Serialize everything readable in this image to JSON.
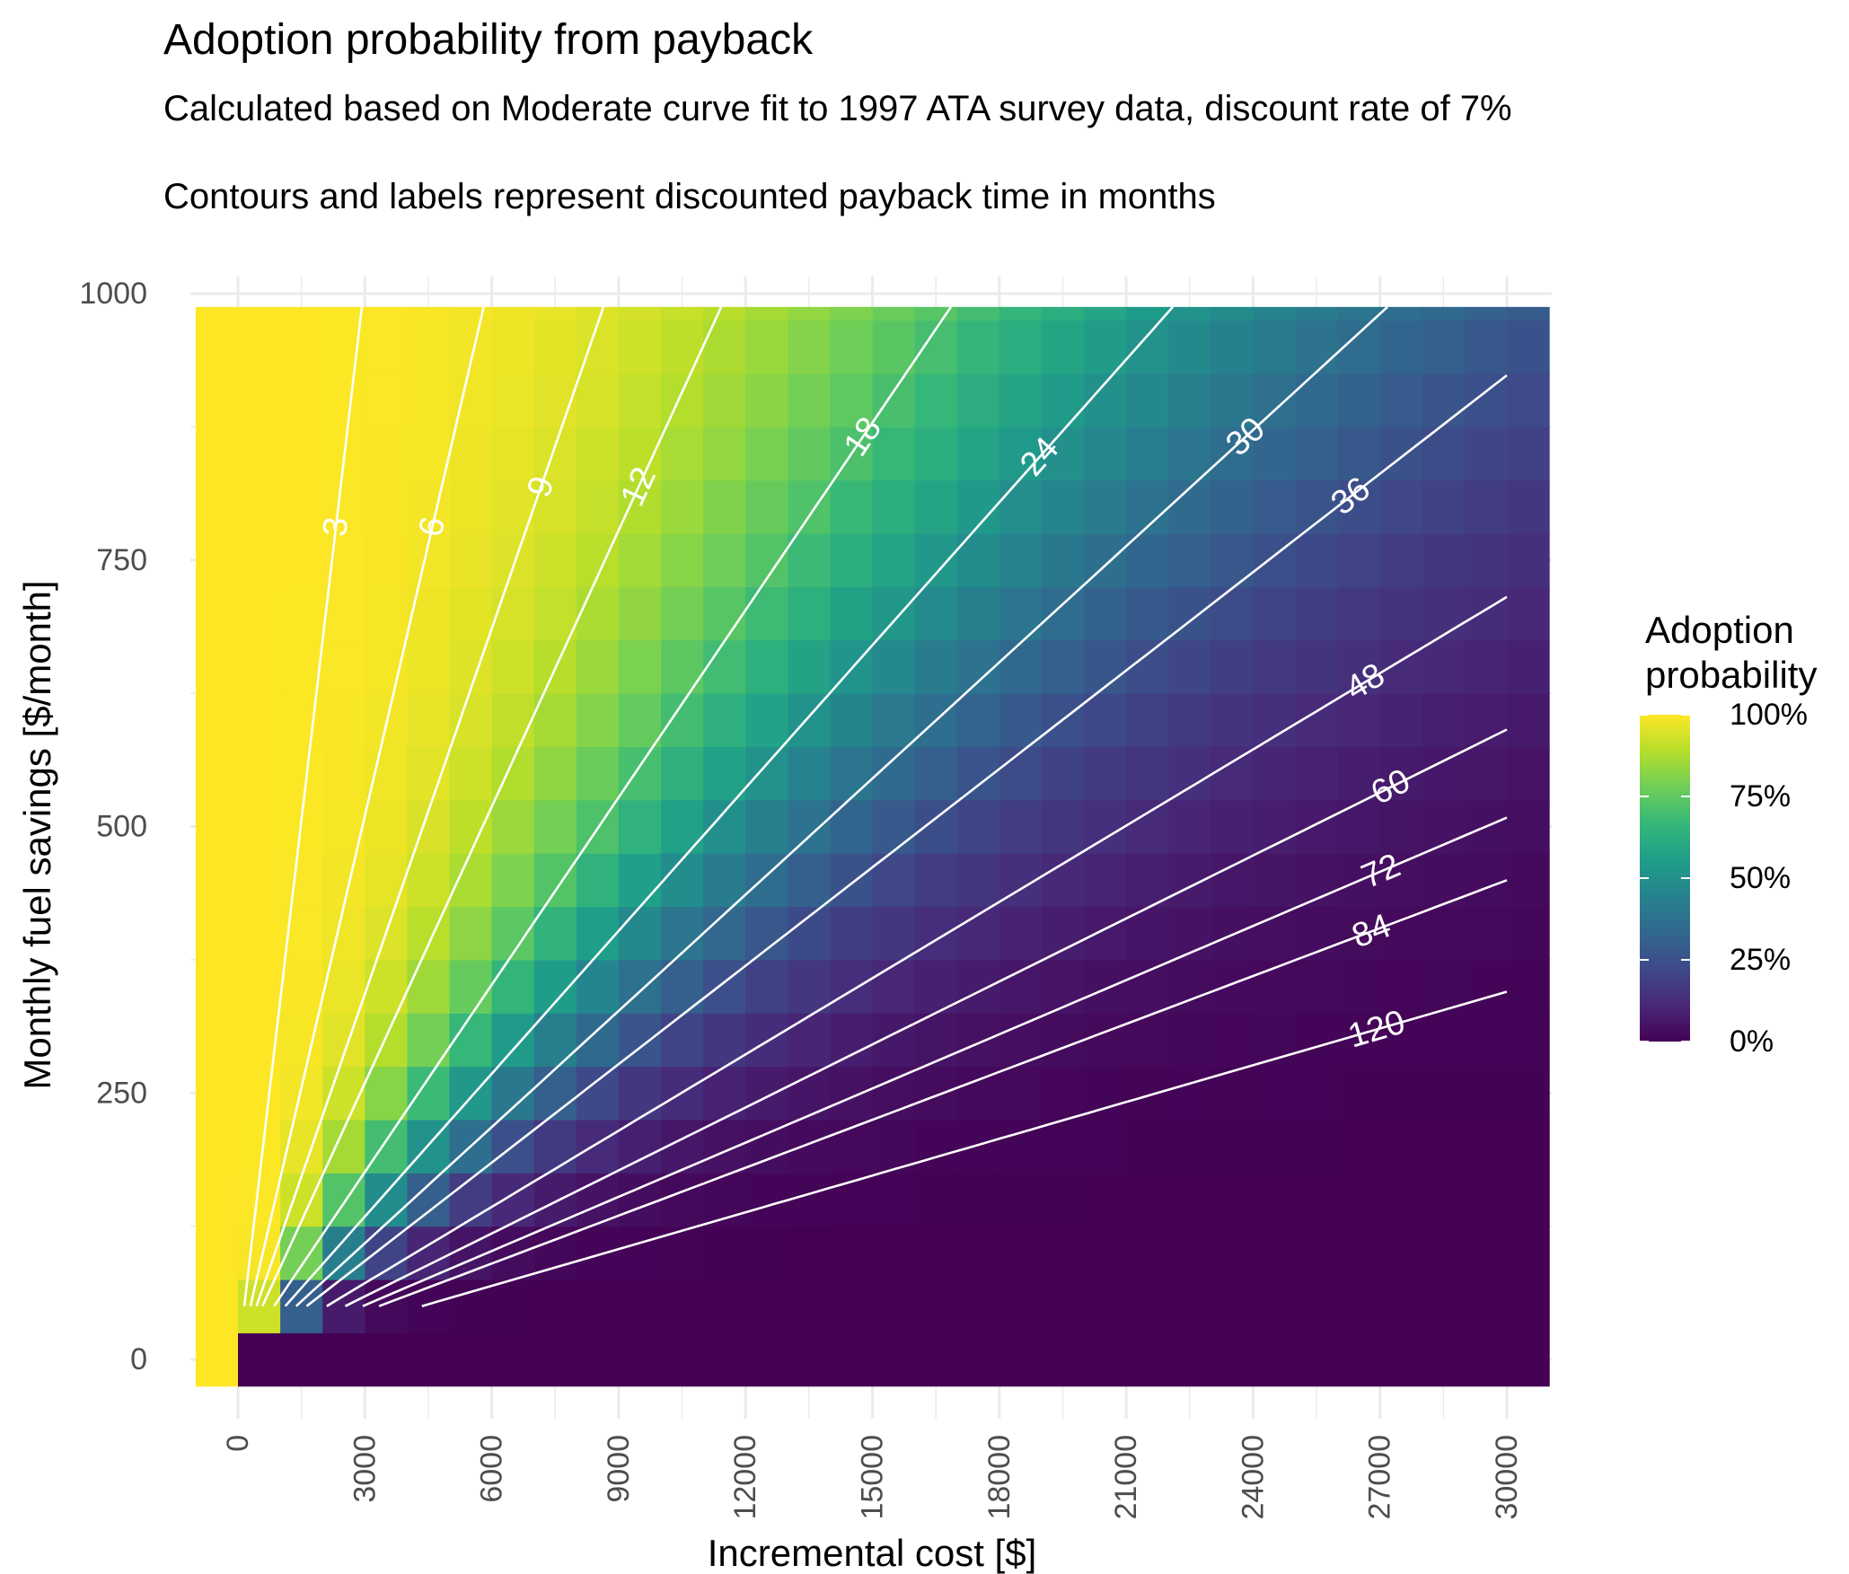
{
  "chart_data": {
    "type": "heatmap",
    "title": "Adoption probability from payback",
    "subtitle_line1": "Calculated based on Moderate curve fit to 1997 ATA survey data, discount rate of 7%",
    "subtitle_line2": "Contours and labels represent discounted payback time in months",
    "xlabel": "Incremental cost [$]",
    "ylabel": "Monthly fuel savings [$/month]",
    "xlim": [
      -1000,
      31000
    ],
    "ylim": [
      -50,
      1000
    ],
    "x_ticks": [
      0,
      3000,
      6000,
      9000,
      12000,
      15000,
      18000,
      21000,
      24000,
      27000,
      30000
    ],
    "x_tick_labels": [
      "0",
      "3000",
      "6000",
      "9000",
      "12000",
      "15000",
      "18000",
      "21000",
      "24000",
      "27000",
      "30000"
    ],
    "y_ticks": [
      0,
      250,
      500,
      750,
      1000
    ],
    "y_tick_labels": [
      "0",
      "250",
      "500",
      "750",
      "1000"
    ],
    "grid": true,
    "heatmap": {
      "x_min": -1000,
      "x_max": 31000,
      "x_step": 1000,
      "y_min": -25,
      "y_max": 987.5,
      "y_step": 50
    },
    "color_scale": {
      "name": "viridis",
      "colors": [
        "#440154",
        "#482878",
        "#3e4989",
        "#31688e",
        "#26828e",
        "#1f9e89",
        "#35b779",
        "#6ece58",
        "#b5de2b",
        "#fde725"
      ],
      "domain": [
        0,
        1
      ]
    },
    "legend": {
      "title_line1": "Adoption",
      "title_line2": "probability",
      "placement": "right",
      "ticks": [
        1,
        0.75,
        0.5,
        0.25,
        0
      ],
      "tick_labels": [
        "100%",
        "75%",
        "50%",
        "25%",
        "0%"
      ]
    },
    "contour_label_color": "#ffffff",
    "contours": [
      {
        "months": 3,
        "label": "3"
      },
      {
        "months": 6,
        "label": "6"
      },
      {
        "months": 9,
        "label": "9"
      },
      {
        "months": 12,
        "label": "12"
      },
      {
        "months": 18,
        "label": "18"
      },
      {
        "months": 24,
        "label": "24"
      },
      {
        "months": 30,
        "label": "30"
      },
      {
        "months": 36,
        "label": "36"
      },
      {
        "months": 48,
        "label": "48"
      },
      {
        "months": 60,
        "label": "60"
      },
      {
        "months": 72,
        "label": "72"
      },
      {
        "months": 84,
        "label": "84"
      },
      {
        "months": 120,
        "label": "120"
      }
    ]
  }
}
